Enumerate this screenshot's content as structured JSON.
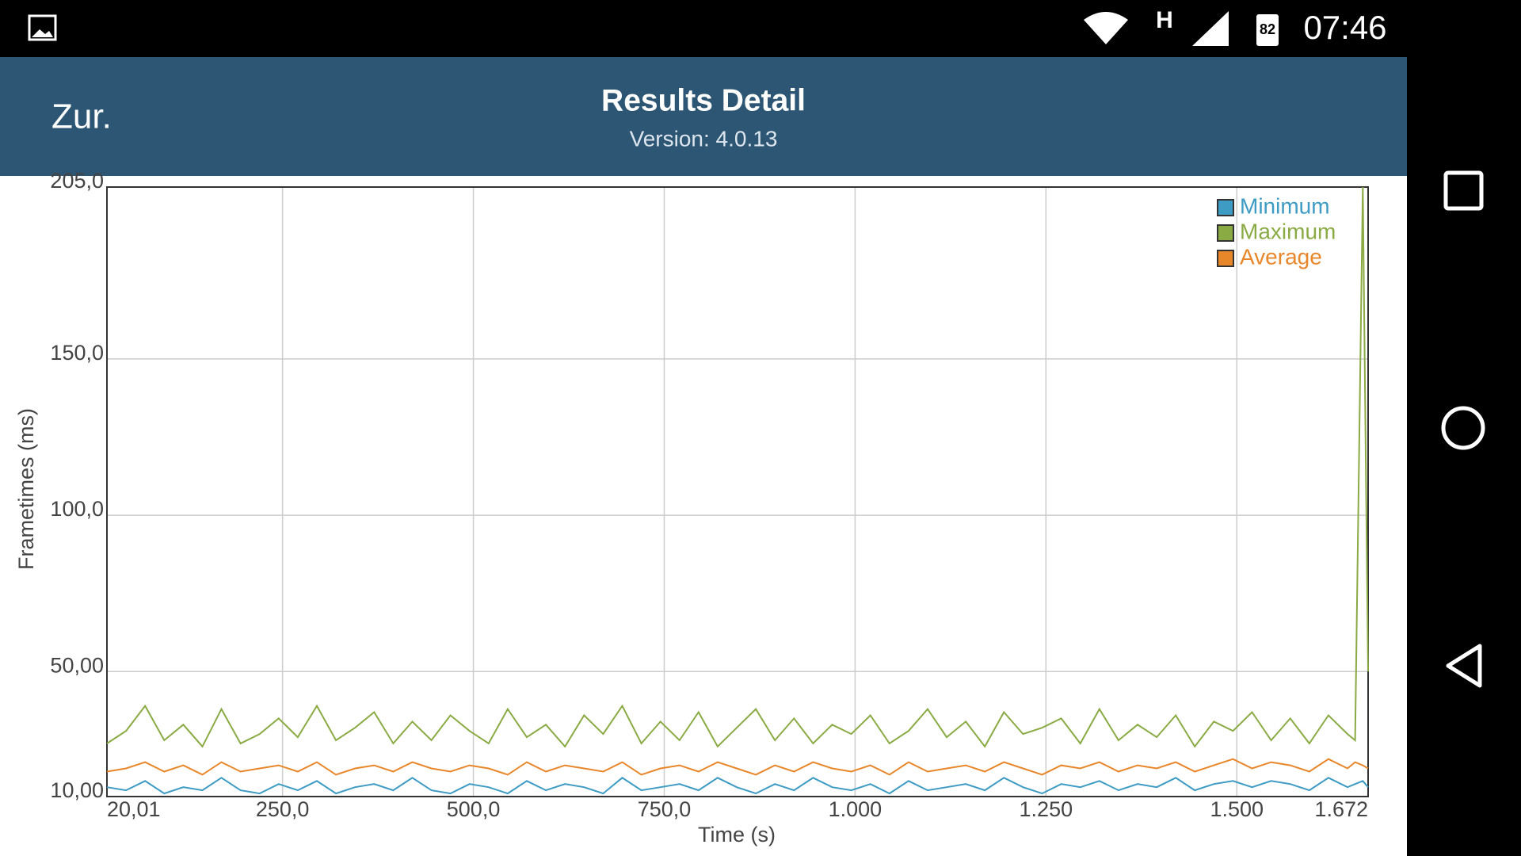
{
  "status_bar": {
    "network": "H",
    "battery": "82",
    "time": "07:46"
  },
  "app_bar": {
    "back": "Zur.",
    "title": "Results Detail",
    "subtitle": "Version: 4.0.13"
  },
  "chart_data": {
    "type": "line",
    "x_label": "Time (s)",
    "y_label": "Frametimes (ms)",
    "x": [
      20.01,
      45,
      70,
      95,
      120,
      145,
      170,
      195,
      220,
      245,
      270,
      295,
      320,
      345,
      370,
      395,
      420,
      445,
      470,
      495,
      520,
      545,
      570,
      595,
      620,
      645,
      670,
      695,
      720,
      745,
      770,
      795,
      820,
      845,
      870,
      895,
      920,
      945,
      970,
      995,
      1020,
      1045,
      1070,
      1095,
      1120,
      1145,
      1170,
      1195,
      1220,
      1245,
      1270,
      1295,
      1320,
      1345,
      1370,
      1395,
      1420,
      1445,
      1470,
      1495,
      1520,
      1545,
      1570,
      1595,
      1620,
      1645,
      1655,
      1665,
      1672
    ],
    "series": [
      {
        "name": "Minimum",
        "color": "#3d9bc4",
        "values": [
          13,
          12,
          15,
          11,
          13,
          12,
          16,
          12,
          11,
          14,
          12,
          15,
          11,
          13,
          14,
          12,
          16,
          12,
          11,
          14,
          13,
          11,
          15,
          12,
          14,
          13,
          11,
          16,
          12,
          13,
          14,
          12,
          16,
          13,
          11,
          14,
          12,
          16,
          13,
          12,
          14,
          11,
          15,
          12,
          13,
          14,
          12,
          16,
          13,
          11,
          14,
          13,
          15,
          12,
          14,
          13,
          16,
          12,
          14,
          15,
          13,
          15,
          14,
          12,
          16,
          13,
          14,
          15,
          13
        ]
      },
      {
        "name": "Maximum",
        "color": "#8aaa44",
        "values": [
          27,
          31,
          39,
          28,
          33,
          26,
          38,
          27,
          30,
          35,
          29,
          39,
          28,
          32,
          37,
          27,
          34,
          28,
          36,
          31,
          27,
          38,
          29,
          33,
          26,
          36,
          30,
          39,
          27,
          34,
          28,
          37,
          26,
          32,
          38,
          28,
          35,
          27,
          33,
          30,
          36,
          27,
          31,
          38,
          29,
          34,
          26,
          37,
          30,
          32,
          35,
          27,
          38,
          28,
          33,
          29,
          36,
          26,
          34,
          31,
          37,
          28,
          35,
          27,
          36,
          30,
          28,
          205,
          50
        ]
      },
      {
        "name": "Average",
        "color": "#e8862a",
        "values": [
          18,
          19,
          21,
          18,
          20,
          17,
          21,
          18,
          19,
          20,
          18,
          21,
          17,
          19,
          20,
          18,
          21,
          19,
          18,
          20,
          19,
          17,
          21,
          18,
          20,
          19,
          18,
          21,
          17,
          19,
          20,
          18,
          21,
          19,
          17,
          20,
          18,
          21,
          19,
          18,
          20,
          17,
          21,
          18,
          19,
          20,
          18,
          21,
          19,
          17,
          20,
          19,
          21,
          18,
          20,
          19,
          21,
          18,
          20,
          22,
          19,
          21,
          20,
          18,
          22,
          19,
          21,
          20,
          19
        ]
      }
    ],
    "xlim": [
      20.01,
      1672
    ],
    "ylim": [
      10,
      205
    ],
    "xticks": [
      {
        "value": 20.01,
        "label": "20,01"
      },
      {
        "value": 250,
        "label": "250,0"
      },
      {
        "value": 500,
        "label": "500,0"
      },
      {
        "value": 750,
        "label": "750,0"
      },
      {
        "value": 1000,
        "label": "1.000"
      },
      {
        "value": 1250,
        "label": "1.250"
      },
      {
        "value": 1500,
        "label": "1.500"
      },
      {
        "value": 1672,
        "label": "1.672"
      }
    ],
    "yticks": [
      {
        "value": 10,
        "label": "10,00"
      },
      {
        "value": 50,
        "label": "50,00"
      },
      {
        "value": 100,
        "label": "100,0"
      },
      {
        "value": 150,
        "label": "150,0"
      },
      {
        "value": 205,
        "label": "205,0"
      }
    ],
    "grid": true,
    "legend": "upper-right"
  }
}
